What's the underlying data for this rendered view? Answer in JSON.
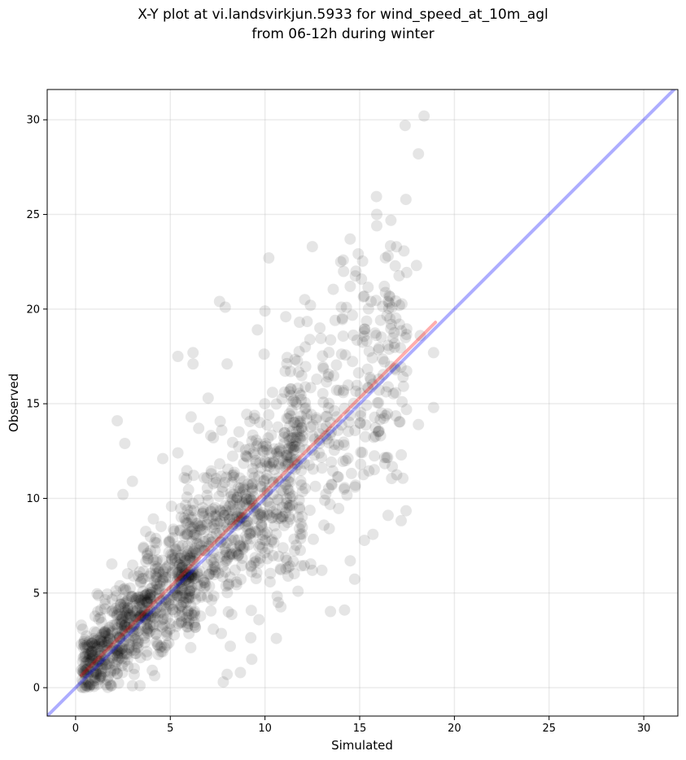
{
  "chart_data": {
    "type": "scatter",
    "title_line1": "X-Y plot at vi.landsvirkjun.5933 for wind_speed_at_10m_agl",
    "title_line2": "from 06-12h during winter",
    "xlabel": "Simulated",
    "ylabel": "Observed",
    "xlim": [
      -1.5,
      31.8
    ],
    "ylim": [
      -1.5,
      31.6
    ],
    "xticks": [
      0,
      5,
      10,
      15,
      20,
      25,
      30
    ],
    "yticks": [
      0,
      5,
      10,
      15,
      20,
      25,
      30
    ],
    "grid": true,
    "point_color": "#000000",
    "point_opacity": 0.1,
    "identity_line": {
      "from": [
        -1.5,
        -1.5
      ],
      "to": [
        31.8,
        31.8
      ],
      "color": "#0000ff"
    },
    "fit_line": {
      "from": [
        0.3,
        0.65
      ],
      "to": [
        19.0,
        19.3
      ],
      "color": "#ff0000"
    },
    "outlier_points": [
      [
        17.4,
        29.7
      ],
      [
        18.4,
        30.2
      ],
      [
        18.1,
        28.2
      ],
      [
        15.9,
        25.0
      ],
      [
        15.9,
        24.4
      ],
      [
        12.5,
        23.3
      ],
      [
        10.2,
        22.7
      ],
      [
        14.0,
        22.5
      ],
      [
        16.5,
        22.8
      ],
      [
        14.8,
        22.0
      ],
      [
        18.0,
        22.3
      ],
      [
        14.5,
        21.2
      ],
      [
        16.3,
        21.2
      ],
      [
        7.6,
        20.4
      ],
      [
        7.9,
        20.1
      ],
      [
        18.9,
        17.7
      ],
      [
        18.9,
        14.8
      ],
      [
        18.1,
        13.9
      ],
      [
        16.5,
        9.1
      ],
      [
        15.7,
        8.1
      ],
      [
        14.2,
        4.1
      ],
      [
        14.5,
        6.7
      ],
      [
        2.2,
        14.1
      ],
      [
        2.6,
        12.9
      ],
      [
        5.4,
        17.5
      ],
      [
        6.2,
        17.7
      ],
      [
        6.2,
        17.1
      ],
      [
        6.1,
        14.3
      ],
      [
        6.5,
        13.7
      ],
      [
        8.0,
        17.1
      ],
      [
        7.0,
        15.3
      ],
      [
        15.6,
        20.4
      ],
      [
        16.5,
        20.4
      ],
      [
        17.1,
        20.2
      ],
      [
        16.6,
        19.5
      ],
      [
        17.1,
        19.2
      ],
      [
        18.2,
        18.6
      ],
      [
        12.1,
        20.5
      ],
      [
        12.9,
        19.0
      ],
      [
        13.7,
        19.4
      ],
      [
        10.0,
        19.9
      ],
      [
        11.1,
        19.6
      ],
      [
        9.6,
        18.9
      ],
      [
        12.4,
        20.2
      ],
      [
        10.7,
        4.5
      ],
      [
        10.6,
        2.6
      ],
      [
        12.5,
        6.2
      ],
      [
        13.0,
        6.2
      ],
      [
        8.7,
        0.8
      ],
      [
        7.8,
        0.3
      ],
      [
        8.0,
        0.7
      ],
      [
        9.3,
        1.5
      ],
      [
        3.0,
        10.9
      ],
      [
        2.5,
        10.2
      ],
      [
        4.6,
        12.1
      ],
      [
        5.4,
        12.4
      ],
      [
        3.0,
        0.1
      ],
      [
        1.9,
        0.1
      ],
      [
        0.5,
        0.0
      ],
      [
        0.3,
        3.3
      ]
    ],
    "note": "Approximately 1500 semi-transparent points form a dense cloud along the diagonal; outlier_points lists the distinct individually readable points."
  }
}
